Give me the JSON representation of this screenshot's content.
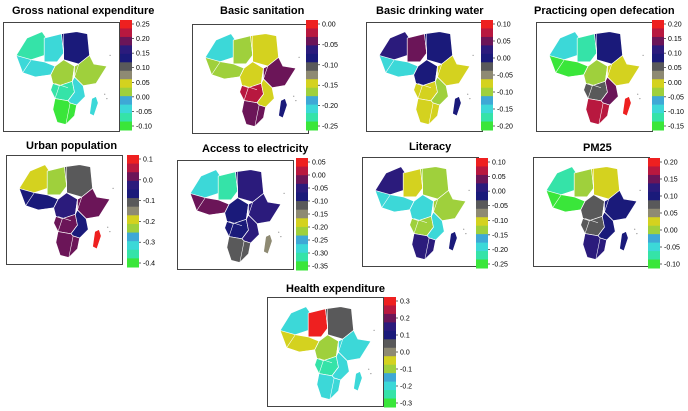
{
  "colors": {
    "ramp": [
      "#3ae63a",
      "#35e3a8",
      "#3cd8d8",
      "#3ea8d6",
      "#9fd03c",
      "#d4d21f",
      "#8e8a73",
      "#59595a",
      "#1a1a7a",
      "#2b1b7c",
      "#6b1558",
      "#b8183f",
      "#ee2020"
    ],
    "border": "#ffffff",
    "frame": "#444444"
  },
  "panels": [
    {
      "title": "Gross national expenditure",
      "ticks": [
        "0.25",
        "0.20",
        "0.15",
        "0.10",
        "0.05",
        "0.00",
        "-0.05",
        "-0.10"
      ],
      "regions": [
        "#35e3a8",
        "#3cd8d8",
        "#1a1a7a",
        "#3cd8d8",
        "#9fd03c",
        "#9fd03c",
        "#35e3a8",
        "#3cd8d8",
        "#3ae63a",
        "#3cd8d8"
      ]
    },
    {
      "title": "Basic sanitation",
      "ticks": [
        "0.00",
        "-0.05",
        "-0.10",
        "-0.15",
        "-0.20",
        "-0.25"
      ],
      "regions": [
        "#3cd8d8",
        "#9fd03c",
        "#d4d21f",
        "#9fd03c",
        "#d4d21f",
        "#6b1558",
        "#b8183f",
        "#d4d21f",
        "#6b1558",
        "#1a1a7a"
      ]
    },
    {
      "title": "Basic drinking water",
      "ticks": [
        "0.10",
        "0.05",
        "0.00",
        "-0.05",
        "-0.10",
        "-0.15",
        "-0.20"
      ],
      "regions": [
        "#2b1b7c",
        "#6b1558",
        "#1a1a7a",
        "#3cd8d8",
        "#1a1a7a",
        "#d4d21f",
        "#d4d21f",
        "#9fd03c",
        "#d4d21f",
        "#1a1a7a"
      ]
    },
    {
      "title": "Practicing open defecation",
      "ticks": [
        "0.20",
        "0.15",
        "0.10",
        "0.05",
        "0.00",
        "-0.05",
        "-0.10",
        "-0.15"
      ],
      "regions": [
        "#3cd8d8",
        "#35e3a8",
        "#1a1a7a",
        "#3ae63a",
        "#9fd03c",
        "#d4d21f",
        "#59595a",
        "#6b1558",
        "#b8183f",
        "#ee2020"
      ]
    },
    {
      "title": "Urban population",
      "ticks": [
        "0.1",
        "0.0",
        "-0.1",
        "-0.2",
        "-0.3",
        "-0.4"
      ],
      "regions": [
        "#d4d21f",
        "#9fd03c",
        "#59595a",
        "#1a1a7a",
        "#2b1b7c",
        "#6b1558",
        "#6b1558",
        "#1a1a7a",
        "#6b1558",
        "#ee2020"
      ]
    },
    {
      "title": "Access to electricity",
      "ticks": [
        "0.05",
        "0.00",
        "-0.05",
        "-0.10",
        "-0.15",
        "-0.20",
        "-0.25",
        "-0.30",
        "-0.35"
      ],
      "regions": [
        "#3cd8d8",
        "#35e3a8",
        "#2b1b7c",
        "#6b1558",
        "#1a1a7a",
        "#2b1b7c",
        "#1a1a7a",
        "#2b1b7c",
        "#59595a",
        "#8e8a73"
      ]
    },
    {
      "title": "Literacy",
      "ticks": [
        "0.10",
        "0.05",
        "0.00",
        "-0.05",
        "-0.10",
        "-0.15",
        "-0.20",
        "-0.25"
      ],
      "regions": [
        "#2b1b7c",
        "#d4d21f",
        "#9fd03c",
        "#3cd8d8",
        "#3cd8d8",
        "#9fd03c",
        "#9fd03c",
        "#3cd8d8",
        "#2b1b7c",
        "#1a1a7a"
      ]
    },
    {
      "title": "PM25",
      "ticks": [
        "0.20",
        "0.15",
        "0.10",
        "0.05",
        "0.00",
        "-0.05",
        "-0.10"
      ],
      "regions": [
        "#35e3a8",
        "#9fd03c",
        "#d4d21f",
        "#3ae63a",
        "#59595a",
        "#1a1a7a",
        "#59595a",
        "#1a1a7a",
        "#2b1b7c",
        "#1a1a7a"
      ]
    },
    {
      "title": "Health expenditure",
      "ticks": [
        "0.3",
        "0.2",
        "0.1",
        "0.0",
        "-0.1",
        "-0.2",
        "-0.3"
      ],
      "regions": [
        "#3cd8d8",
        "#ee2020",
        "#59595a",
        "#d4d21f",
        "#9fd03c",
        "#3cd8d8",
        "#35e3a8",
        "#3cd8d8",
        "#3cd8d8",
        "#3cd8d8"
      ]
    }
  ]
}
